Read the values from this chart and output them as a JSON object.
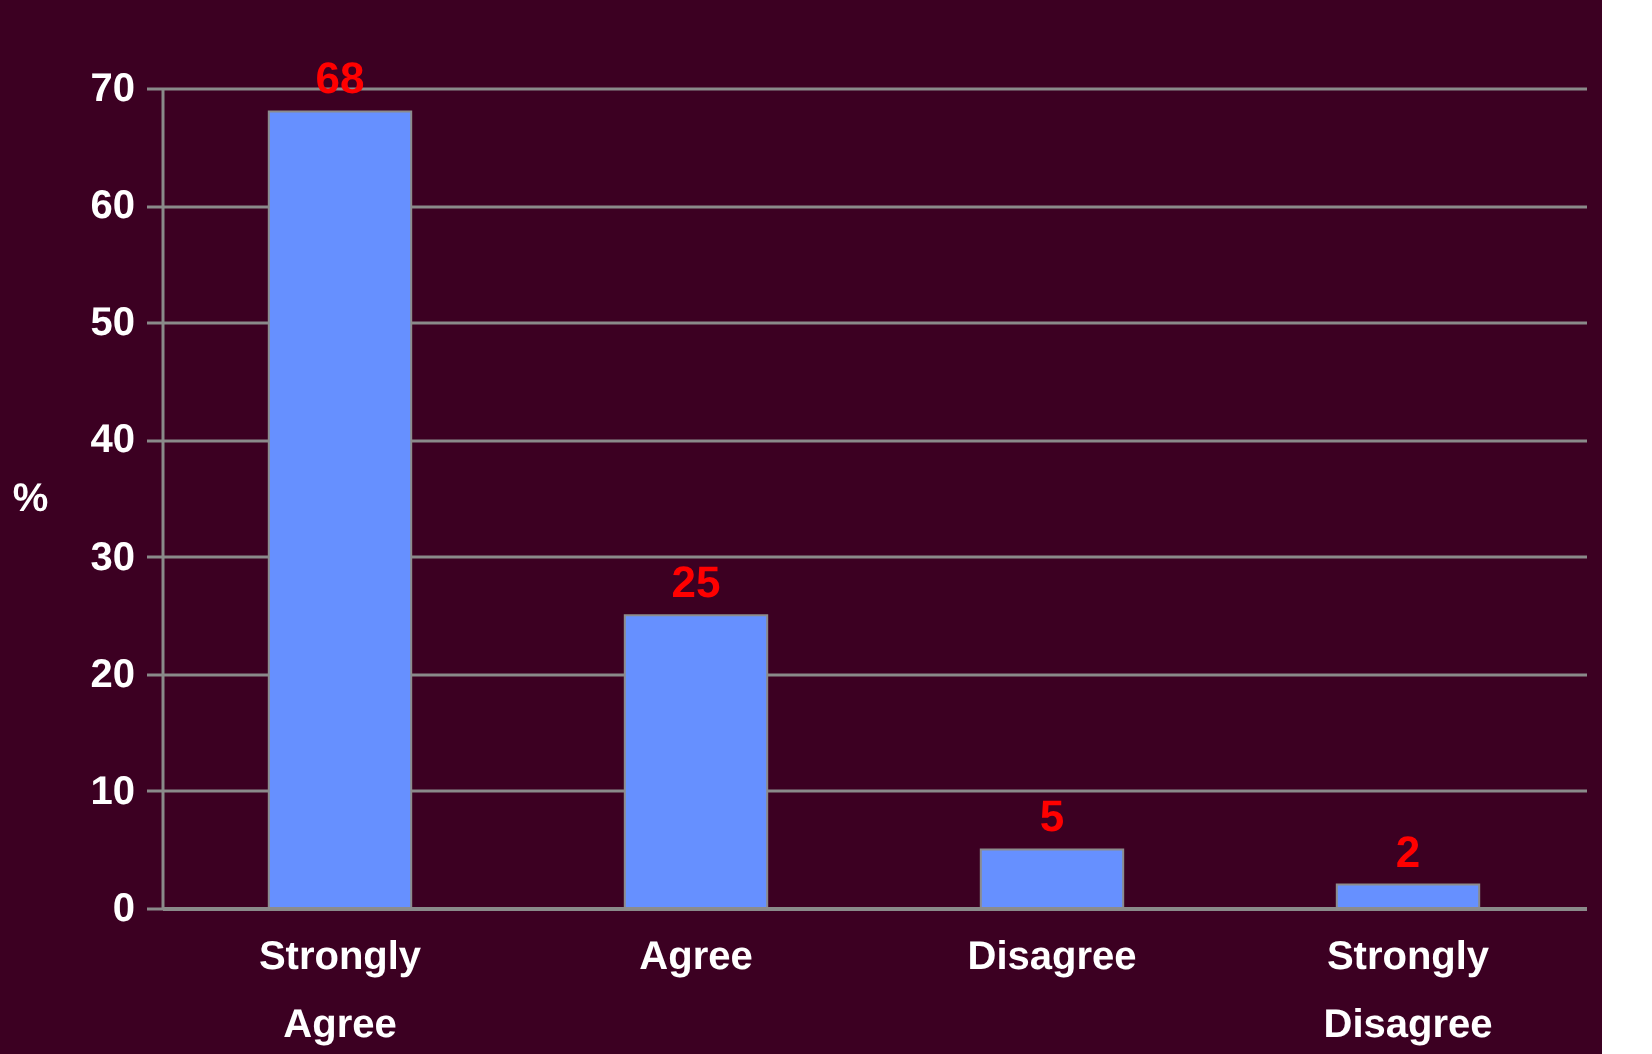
{
  "chart_data": {
    "type": "bar",
    "ylabel": "%",
    "categories": [
      "Strongly Agree",
      "Agree",
      "Disagree",
      "Strongly Disagree"
    ],
    "values": [
      68,
      25,
      5,
      2
    ],
    "color": "#6690ff",
    "ylim": [
      0,
      70
    ],
    "yticks": [
      0,
      10,
      20,
      30,
      40,
      50,
      60,
      70
    ],
    "grid": "y",
    "data_labels": true
  }
}
